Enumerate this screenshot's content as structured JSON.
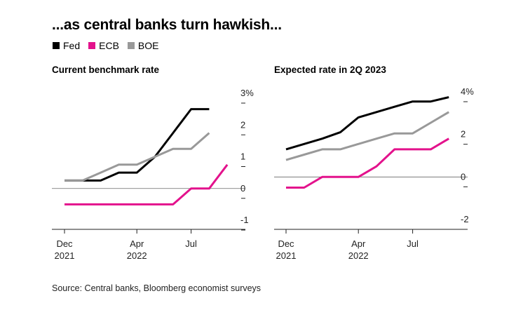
{
  "title": "...as central banks turn hawkish...",
  "legend": [
    {
      "name": "Fed",
      "color": "#000000"
    },
    {
      "name": "ECB",
      "color": "#e3128c"
    },
    {
      "name": "BOE",
      "color": "#999999"
    }
  ],
  "source": "Source: Central banks, Bloomberg economist surveys",
  "chart_data": [
    {
      "type": "line",
      "title": "Current benchmark rate",
      "x_ticks": [
        {
          "label": [
            "Dec",
            "2021"
          ],
          "date": "2021-12"
        },
        {
          "label": [
            "Apr",
            "2022"
          ],
          "date": "2022-04"
        },
        {
          "label": [
            "Jul",
            ""
          ],
          "date": "2022-07"
        }
      ],
      "y_ticks": [
        {
          "value": 3,
          "label": "3%"
        },
        {
          "value": 2,
          "label": "2"
        },
        {
          "value": 1,
          "label": "1"
        },
        {
          "value": 0,
          "label": "0"
        },
        {
          "value": -1,
          "label": "-1"
        }
      ],
      "ylim": [
        -1,
        3
      ],
      "y_gridlines": false,
      "zero_line": true,
      "series": [
        {
          "name": "Fed",
          "color": "#000000",
          "points": [
            [
              "2021-12",
              0.25
            ],
            [
              "2022-01",
              0.25
            ],
            [
              "2022-02",
              0.25
            ],
            [
              "2022-03",
              0.5
            ],
            [
              "2022-04",
              0.5
            ],
            [
              "2022-05",
              1.0
            ],
            [
              "2022-06",
              1.75
            ],
            [
              "2022-07",
              2.5
            ],
            [
              "2022-08",
              2.5
            ]
          ]
        },
        {
          "name": "ECB",
          "color": "#e3128c",
          "points": [
            [
              "2021-12",
              -0.5
            ],
            [
              "2022-01",
              -0.5
            ],
            [
              "2022-02",
              -0.5
            ],
            [
              "2022-03",
              -0.5
            ],
            [
              "2022-04",
              -0.5
            ],
            [
              "2022-05",
              -0.5
            ],
            [
              "2022-06",
              -0.5
            ],
            [
              "2022-07",
              0.0
            ],
            [
              "2022-08",
              0.0
            ],
            [
              "2022-09",
              0.75
            ]
          ]
        },
        {
          "name": "BOE",
          "color": "#999999",
          "points": [
            [
              "2021-12",
              0.25
            ],
            [
              "2022-01",
              0.25
            ],
            [
              "2022-02",
              0.5
            ],
            [
              "2022-03",
              0.75
            ],
            [
              "2022-04",
              0.75
            ],
            [
              "2022-05",
              1.0
            ],
            [
              "2022-06",
              1.25
            ],
            [
              "2022-07",
              1.25
            ],
            [
              "2022-08",
              1.75
            ]
          ]
        }
      ]
    },
    {
      "type": "line",
      "title": "Expected rate in 2Q 2023",
      "x_ticks": [
        {
          "label": [
            "Dec",
            "2021"
          ],
          "date": "2021-12"
        },
        {
          "label": [
            "Apr",
            "2022"
          ],
          "date": "2022-04"
        },
        {
          "label": [
            "Jul",
            ""
          ],
          "date": "2022-07"
        }
      ],
      "y_ticks": [
        {
          "value": 4,
          "label": "4%"
        },
        {
          "value": 2,
          "label": "2"
        },
        {
          "value": 0,
          "label": "0"
        },
        {
          "value": -2,
          "label": "-2"
        }
      ],
      "ylim": [
        -2,
        4
      ],
      "y_gridlines": false,
      "zero_line": true,
      "series": [
        {
          "name": "Fed",
          "color": "#000000",
          "points": [
            [
              "2021-12",
              1.3
            ],
            [
              "2022-01",
              1.55
            ],
            [
              "2022-02",
              1.8
            ],
            [
              "2022-03",
              2.1
            ],
            [
              "2022-04",
              2.8
            ],
            [
              "2022-05",
              3.05
            ],
            [
              "2022-06",
              3.3
            ],
            [
              "2022-07",
              3.55
            ],
            [
              "2022-08",
              3.55
            ],
            [
              "2022-09",
              3.75
            ]
          ]
        },
        {
          "name": "ECB",
          "color": "#e3128c",
          "points": [
            [
              "2021-12",
              -0.5
            ],
            [
              "2022-01",
              -0.5
            ],
            [
              "2022-02",
              0.0
            ],
            [
              "2022-03",
              0.0
            ],
            [
              "2022-04",
              0.0
            ],
            [
              "2022-05",
              0.5
            ],
            [
              "2022-06",
              1.3
            ],
            [
              "2022-07",
              1.3
            ],
            [
              "2022-08",
              1.3
            ],
            [
              "2022-09",
              1.8
            ]
          ]
        },
        {
          "name": "BOE",
          "color": "#999999",
          "points": [
            [
              "2021-12",
              0.8
            ],
            [
              "2022-01",
              1.05
            ],
            [
              "2022-02",
              1.3
            ],
            [
              "2022-03",
              1.3
            ],
            [
              "2022-04",
              1.55
            ],
            [
              "2022-05",
              1.8
            ],
            [
              "2022-06",
              2.05
            ],
            [
              "2022-07",
              2.05
            ],
            [
              "2022-08",
              2.55
            ],
            [
              "2022-09",
              3.05
            ]
          ]
        }
      ]
    }
  ]
}
